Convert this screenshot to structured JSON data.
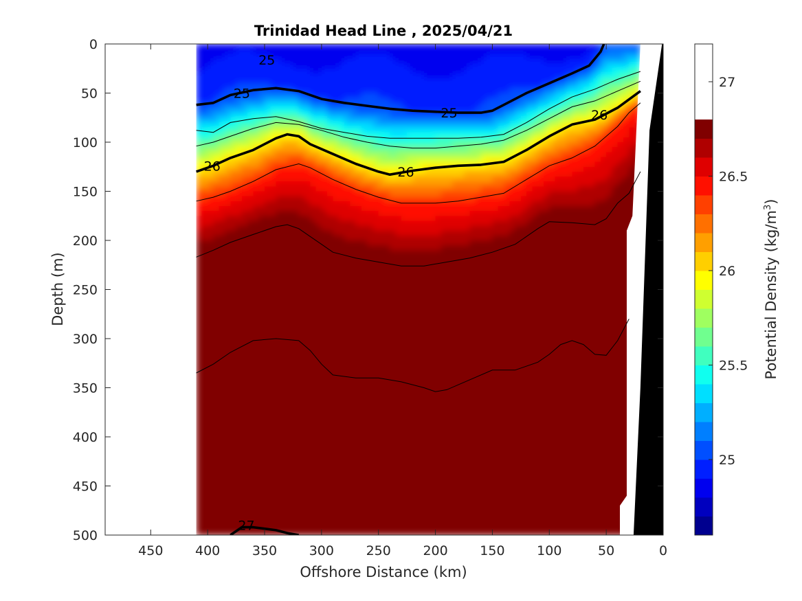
{
  "chart_data": {
    "type": "heatmap",
    "subtype": "filled-contour-section",
    "title": "Trinidad Head Line , 2025/04/21",
    "xlabel": "Offshore Distance (km)",
    "ylabel": "Depth (m)",
    "xlim": [
      490,
      0
    ],
    "ylim": [
      0,
      500
    ],
    "x_direction": "reversed",
    "y_direction": "reversed",
    "x_ticks": [
      450,
      400,
      350,
      300,
      250,
      200,
      150,
      100,
      50,
      0
    ],
    "y_ticks": [
      0,
      50,
      100,
      150,
      200,
      250,
      300,
      350,
      400,
      450,
      500
    ],
    "data_extent_km": [
      410,
      20
    ],
    "colorbar": {
      "label": "Potential Density (kg/m",
      "label_superscript": "3",
      "label_suffix": ")",
      "range": [
        24.6,
        27.2
      ],
      "level_step": 0.1,
      "ticks": [
        25,
        25.5,
        26,
        26.5,
        27
      ],
      "colors": [
        "#00008f",
        "#0000bf",
        "#0000ef",
        "#001fff",
        "#004fff",
        "#007fff",
        "#00afff",
        "#00dfff",
        "#10ffef",
        "#40ffbf",
        "#70ff8f",
        "#9fff60",
        "#cfff30",
        "#ffff00",
        "#ffcf00",
        "#ff9f00",
        "#ff7000",
        "#ff4000",
        "#ff1000",
        "#df0000",
        "#af0000",
        "#800000"
      ]
    },
    "isopycnals_bold": [
      {
        "value": 25,
        "points": [
          [
            410,
            62
          ],
          [
            395,
            60
          ],
          [
            380,
            52
          ],
          [
            360,
            47
          ],
          [
            340,
            45
          ],
          [
            320,
            48
          ],
          [
            300,
            56
          ],
          [
            280,
            60
          ],
          [
            260,
            63
          ],
          [
            240,
            66
          ],
          [
            220,
            68
          ],
          [
            200,
            69
          ],
          [
            180,
            70
          ],
          [
            160,
            70
          ],
          [
            150,
            68
          ],
          [
            140,
            62
          ],
          [
            120,
            50
          ],
          [
            100,
            40
          ],
          [
            80,
            30
          ],
          [
            65,
            22
          ],
          [
            55,
            8
          ],
          [
            52,
            0
          ]
        ]
      },
      {
        "value": 26,
        "points": [
          [
            410,
            130
          ],
          [
            395,
            124
          ],
          [
            380,
            116
          ],
          [
            360,
            108
          ],
          [
            340,
            96
          ],
          [
            330,
            92
          ],
          [
            320,
            94
          ],
          [
            310,
            102
          ],
          [
            290,
            112
          ],
          [
            270,
            122
          ],
          [
            250,
            130
          ],
          [
            240,
            133
          ],
          [
            220,
            129
          ],
          [
            200,
            126
          ],
          [
            180,
            124
          ],
          [
            160,
            123
          ],
          [
            140,
            120
          ],
          [
            120,
            108
          ],
          [
            100,
            94
          ],
          [
            80,
            82
          ],
          [
            60,
            77
          ],
          [
            40,
            65
          ],
          [
            20,
            48
          ]
        ]
      },
      {
        "value": 27,
        "points": [
          [
            380,
            500
          ],
          [
            370,
            492
          ],
          [
            360,
            492
          ],
          [
            340,
            495
          ],
          [
            330,
            498
          ],
          [
            320,
            500
          ]
        ]
      }
    ],
    "isopycnals_thin": [
      {
        "value": 24.9,
        "points": [
          [
            370,
            500
          ]
        ]
      },
      {
        "value": 25.1,
        "points": [
          [
            410,
            88
          ],
          [
            395,
            90
          ],
          [
            380,
            80
          ],
          [
            360,
            76
          ],
          [
            340,
            74
          ],
          [
            320,
            79
          ],
          [
            300,
            86
          ],
          [
            280,
            90
          ],
          [
            260,
            94
          ],
          [
            240,
            96
          ],
          [
            220,
            96
          ],
          [
            200,
            96
          ],
          [
            180,
            96
          ],
          [
            160,
            95
          ],
          [
            140,
            92
          ],
          [
            120,
            80
          ],
          [
            100,
            66
          ],
          [
            80,
            54
          ],
          [
            60,
            46
          ],
          [
            40,
            36
          ],
          [
            20,
            28
          ]
        ]
      },
      {
        "value": 25.7,
        "points": [
          [
            410,
            104
          ],
          [
            395,
            100
          ],
          [
            380,
            94
          ],
          [
            360,
            86
          ],
          [
            340,
            80
          ],
          [
            320,
            82
          ],
          [
            300,
            88
          ],
          [
            280,
            95
          ],
          [
            260,
            100
          ],
          [
            240,
            104
          ],
          [
            220,
            106
          ],
          [
            200,
            106
          ],
          [
            180,
            104
          ],
          [
            160,
            102
          ],
          [
            140,
            98
          ],
          [
            120,
            88
          ],
          [
            100,
            76
          ],
          [
            80,
            64
          ],
          [
            60,
            58
          ],
          [
            40,
            48
          ],
          [
            20,
            38
          ]
        ]
      },
      {
        "value": 26.2,
        "points": [
          [
            410,
            160
          ],
          [
            395,
            156
          ],
          [
            380,
            150
          ],
          [
            360,
            140
          ],
          [
            340,
            128
          ],
          [
            320,
            122
          ],
          [
            310,
            126
          ],
          [
            290,
            138
          ],
          [
            270,
            148
          ],
          [
            250,
            156
          ],
          [
            230,
            162
          ],
          [
            200,
            162
          ],
          [
            180,
            160
          ],
          [
            160,
            156
          ],
          [
            140,
            152
          ],
          [
            120,
            138
          ],
          [
            100,
            124
          ],
          [
            80,
            116
          ],
          [
            60,
            104
          ],
          [
            40,
            84
          ],
          [
            30,
            70
          ],
          [
            20,
            60
          ]
        ]
      },
      {
        "value": 26.4,
        "points": [
          [
            410,
            217
          ],
          [
            395,
            210
          ],
          [
            380,
            202
          ],
          [
            360,
            194
          ],
          [
            340,
            186
          ],
          [
            330,
            184
          ],
          [
            320,
            188
          ],
          [
            310,
            196
          ],
          [
            300,
            204
          ],
          [
            290,
            212
          ],
          [
            270,
            218
          ],
          [
            250,
            222
          ],
          [
            230,
            226
          ],
          [
            210,
            226
          ],
          [
            190,
            222
          ],
          [
            170,
            218
          ],
          [
            150,
            212
          ],
          [
            130,
            204
          ],
          [
            110,
            188
          ],
          [
            100,
            181
          ],
          [
            80,
            182
          ],
          [
            60,
            184
          ],
          [
            50,
            178
          ],
          [
            40,
            162
          ],
          [
            30,
            152
          ],
          [
            20,
            130
          ]
        ]
      },
      {
        "value": 26.8,
        "points": [
          [
            410,
            335
          ],
          [
            395,
            326
          ],
          [
            380,
            314
          ],
          [
            360,
            302
          ],
          [
            340,
            300
          ],
          [
            320,
            302
          ],
          [
            310,
            312
          ],
          [
            300,
            326
          ],
          [
            290,
            337
          ],
          [
            270,
            340
          ],
          [
            250,
            340
          ],
          [
            230,
            344
          ],
          [
            210,
            350
          ],
          [
            200,
            354
          ],
          [
            190,
            352
          ],
          [
            170,
            342
          ],
          [
            150,
            332
          ],
          [
            130,
            332
          ],
          [
            110,
            324
          ],
          [
            100,
            316
          ],
          [
            90,
            306
          ],
          [
            80,
            302
          ],
          [
            70,
            306
          ],
          [
            60,
            316
          ],
          [
            50,
            317
          ],
          [
            40,
            302
          ],
          [
            30,
            280
          ]
        ]
      }
    ],
    "contour_labels": [
      {
        "value": 25,
        "text": "25",
        "at": [
          348,
          16
        ]
      },
      {
        "value": 25,
        "text": "25",
        "at": [
          370,
          50
        ]
      },
      {
        "value": 25,
        "text": "25",
        "at": [
          188,
          70
        ]
      },
      {
        "value": 26,
        "text": "26",
        "at": [
          56,
          72
        ]
      },
      {
        "value": 26,
        "text": "26",
        "at": [
          396,
          124
        ]
      },
      {
        "value": 26,
        "text": "26",
        "at": [
          226,
          130
        ]
      },
      {
        "value": 27,
        "text": "27",
        "at": [
          366,
          490
        ]
      }
    ],
    "bathymetry_color": "#000000",
    "no_data_color": "#ffffff"
  }
}
